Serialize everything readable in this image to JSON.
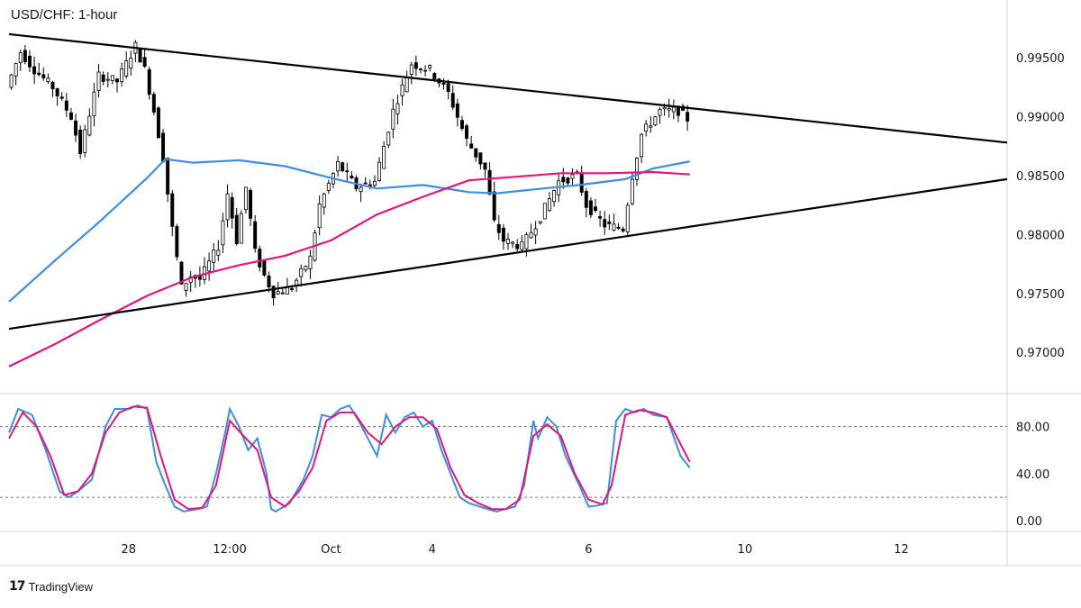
{
  "title": "USD/CHF: 1-hour",
  "brand": {
    "logo": "17",
    "name": "TradingView"
  },
  "colors": {
    "candle": "#000000",
    "ma_fast": "#3d8ee0",
    "ma_slow": "#e0177a",
    "trendline": "#000000",
    "stoch_k": "#3d8ee0",
    "stoch_d": "#e0177a",
    "guide": "#787b86",
    "grid": "#d1d4dc"
  },
  "chart_data": [
    {
      "type": "candlestick",
      "title": "USD/CHF: 1-hour",
      "x_ticks": [
        {
          "t": 26.0,
          "label": "28"
        },
        {
          "t": 48.0,
          "label": "12:00"
        },
        {
          "t": 70.0,
          "label": "Oct"
        },
        {
          "t": 92.0,
          "label": "4"
        },
        {
          "t": 126.0,
          "label": "6"
        },
        {
          "t": 160.0,
          "label": "10"
        },
        {
          "t": 194.0,
          "label": "12"
        }
      ],
      "x_range": [
        0,
        217
      ],
      "y_ticks": [
        "0.99500",
        "0.99000",
        "0.98500",
        "0.98000",
        "0.97500",
        "0.97000"
      ],
      "ylim": [
        0.9665,
        0.9999
      ],
      "price_path": [
        [
          0,
          0.9925
        ],
        [
          3,
          0.9955
        ],
        [
          6,
          0.994
        ],
        [
          10,
          0.9925
        ],
        [
          14,
          0.99
        ],
        [
          16,
          0.987
        ],
        [
          20,
          0.9935
        ],
        [
          24,
          0.993
        ],
        [
          28,
          0.996
        ],
        [
          30,
          0.994
        ],
        [
          32,
          0.9905
        ],
        [
          34,
          0.9865
        ],
        [
          36,
          0.9805
        ],
        [
          38,
          0.9755
        ],
        [
          40,
          0.9765
        ],
        [
          42,
          0.9762
        ],
        [
          46,
          0.979
        ],
        [
          48,
          0.9835
        ],
        [
          50,
          0.9795
        ],
        [
          52,
          0.984
        ],
        [
          54,
          0.9785
        ],
        [
          56,
          0.9765
        ],
        [
          58,
          0.975
        ],
        [
          62,
          0.9755
        ],
        [
          66,
          0.978
        ],
        [
          68,
          0.9825
        ],
        [
          72,
          0.986
        ],
        [
          76,
          0.984
        ],
        [
          80,
          0.9845
        ],
        [
          82,
          0.9875
        ],
        [
          84,
          0.9905
        ],
        [
          86,
          0.9925
        ],
        [
          88,
          0.9945
        ],
        [
          92,
          0.994
        ],
        [
          96,
          0.992
        ],
        [
          100,
          0.988
        ],
        [
          104,
          0.9855
        ],
        [
          106,
          0.981
        ],
        [
          108,
          0.9795
        ],
        [
          112,
          0.979
        ],
        [
          116,
          0.9815
        ],
        [
          120,
          0.9845
        ],
        [
          124,
          0.985
        ],
        [
          126,
          0.9825
        ],
        [
          130,
          0.9808
        ],
        [
          134,
          0.9805
        ],
        [
          136,
          0.985
        ],
        [
          138,
          0.9885
        ],
        [
          142,
          0.9905
        ],
        [
          146,
          0.9905
        ],
        [
          148,
          0.9898
        ]
      ],
      "moving_averages": [
        {
          "color": "ma_fast",
          "points": [
            [
              0,
              0.9743
            ],
            [
              10,
              0.9778
            ],
            [
              20,
              0.9812
            ],
            [
              30,
              0.9848
            ],
            [
              34,
              0.9864
            ],
            [
              40,
              0.9861
            ],
            [
              50,
              0.9863
            ],
            [
              60,
              0.9858
            ],
            [
              70,
              0.9848
            ],
            [
              80,
              0.9839
            ],
            [
              90,
              0.9842
            ],
            [
              100,
              0.9836
            ],
            [
              106,
              0.9835
            ],
            [
              116,
              0.9839
            ],
            [
              124,
              0.9842
            ],
            [
              134,
              0.9847
            ],
            [
              140,
              0.9856
            ],
            [
              148,
              0.9862
            ]
          ]
        },
        {
          "color": "ma_slow",
          "points": [
            [
              0,
              0.9688
            ],
            [
              10,
              0.9707
            ],
            [
              20,
              0.9728
            ],
            [
              30,
              0.9748
            ],
            [
              40,
              0.9764
            ],
            [
              50,
              0.9774
            ],
            [
              60,
              0.9782
            ],
            [
              70,
              0.9795
            ],
            [
              80,
              0.9817
            ],
            [
              90,
              0.9832
            ],
            [
              100,
              0.9846
            ],
            [
              110,
              0.9849
            ],
            [
              120,
              0.9852
            ],
            [
              130,
              0.9852
            ],
            [
              140,
              0.9853
            ],
            [
              148,
              0.9851
            ]
          ]
        }
      ],
      "trendlines": [
        {
          "from": [
            0,
            0.997
          ],
          "to": [
            217,
            0.9878
          ]
        },
        {
          "from": [
            0,
            0.972
          ],
          "to": [
            217,
            0.9847
          ]
        }
      ]
    },
    {
      "type": "line",
      "title": "",
      "y_ticks": [
        "80.00",
        "40.00",
        "0.00"
      ],
      "ylim": [
        -9,
        108
      ],
      "guides": [
        80,
        20
      ],
      "series": [
        {
          "color": "stoch_k",
          "values": [
            [
              0,
              75
            ],
            [
              2,
              95
            ],
            [
              5,
              90
            ],
            [
              8,
              60
            ],
            [
              11,
              25
            ],
            [
              13,
              20
            ],
            [
              15,
              25
            ],
            [
              18,
              35
            ],
            [
              21,
              80
            ],
            [
              23,
              95
            ],
            [
              26,
              95
            ],
            [
              28,
              98
            ],
            [
              30,
              95
            ],
            [
              32,
              50
            ],
            [
              34,
              30
            ],
            [
              36,
              12
            ],
            [
              38,
              8
            ],
            [
              41,
              10
            ],
            [
              43,
              12
            ],
            [
              45,
              40
            ],
            [
              47,
              75
            ],
            [
              48,
              95
            ],
            [
              50,
              80
            ],
            [
              52,
              60
            ],
            [
              54,
              70
            ],
            [
              56,
              40
            ],
            [
              57,
              10
            ],
            [
              58,
              8
            ],
            [
              61,
              15
            ],
            [
              64,
              35
            ],
            [
              66,
              55
            ],
            [
              68,
              90
            ],
            [
              70,
              88
            ],
            [
              72,
              95
            ],
            [
              74,
              98
            ],
            [
              76,
              85
            ],
            [
              78,
              70
            ],
            [
              80,
              55
            ],
            [
              82,
              90
            ],
            [
              84,
              75
            ],
            [
              86,
              88
            ],
            [
              88,
              92
            ],
            [
              90,
              80
            ],
            [
              92,
              85
            ],
            [
              94,
              60
            ],
            [
              96,
              40
            ],
            [
              98,
              20
            ],
            [
              100,
              15
            ],
            [
              104,
              10
            ],
            [
              106,
              8
            ],
            [
              108,
              10
            ],
            [
              110,
              12
            ],
            [
              112,
              30
            ],
            [
              114,
              85
            ],
            [
              115,
              70
            ],
            [
              117,
              88
            ],
            [
              119,
              80
            ],
            [
              121,
              55
            ],
            [
              124,
              30
            ],
            [
              126,
              12
            ],
            [
              128,
              13
            ],
            [
              130,
              15
            ],
            [
              132,
              85
            ],
            [
              134,
              95
            ],
            [
              136,
              92
            ],
            [
              138,
              95
            ],
            [
              140,
              90
            ],
            [
              143,
              88
            ],
            [
              146,
              55
            ],
            [
              148,
              45
            ]
          ]
        },
        {
          "color": "stoch_d",
          "values": [
            [
              0,
              70
            ],
            [
              3,
              92
            ],
            [
              6,
              80
            ],
            [
              9,
              55
            ],
            [
              12,
              22
            ],
            [
              15,
              25
            ],
            [
              18,
              40
            ],
            [
              21,
              75
            ],
            [
              24,
              92
            ],
            [
              27,
              97
            ],
            [
              30,
              96
            ],
            [
              33,
              55
            ],
            [
              36,
              18
            ],
            [
              39,
              10
            ],
            [
              42,
              11
            ],
            [
              45,
              30
            ],
            [
              48,
              85
            ],
            [
              51,
              72
            ],
            [
              54,
              60
            ],
            [
              57,
              20
            ],
            [
              60,
              12
            ],
            [
              63,
              25
            ],
            [
              66,
              45
            ],
            [
              69,
              85
            ],
            [
              72,
              92
            ],
            [
              75,
              92
            ],
            [
              78,
              75
            ],
            [
              81,
              65
            ],
            [
              84,
              80
            ],
            [
              87,
              88
            ],
            [
              90,
              88
            ],
            [
              93,
              78
            ],
            [
              96,
              45
            ],
            [
              99,
              22
            ],
            [
              102,
              15
            ],
            [
              105,
              10
            ],
            [
              108,
              10
            ],
            [
              111,
              18
            ],
            [
              114,
              72
            ],
            [
              117,
              82
            ],
            [
              120,
              72
            ],
            [
              123,
              40
            ],
            [
              126,
              18
            ],
            [
              129,
              14
            ],
            [
              131,
              30
            ],
            [
              134,
              90
            ],
            [
              137,
              94
            ],
            [
              140,
              92
            ],
            [
              143,
              88
            ],
            [
              146,
              65
            ],
            [
              148,
              50
            ]
          ]
        }
      ]
    }
  ]
}
